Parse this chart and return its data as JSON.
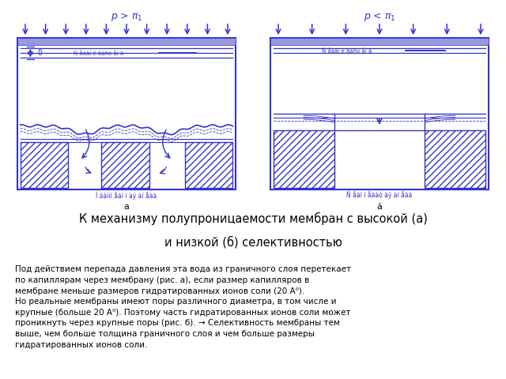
{
  "title_line1": "К механизму полупроницаемости мембран с высокой (а)",
  "title_line2": "и низкой (б) селективностью",
  "pressure_a": "р > $\\pi_1$",
  "pressure_b": "р < $\\pi_1$",
  "blue": "#3333cc",
  "fig_bg": "#ffffff",
  "body_text_lines": [
    "Под действием перепада давления эта вода из граничного слоя перетекает",
    "по капиллярам через мембрану (рис. а), если размер капилляров в",
    "мембране меньше размеров гидратированных ионов соли (20 A⁰).",
    "Но реальные мембраны имеют поры различного диаметра, в том числе и",
    "крупные (больше 20 A⁰). Поэтому часть гидратированных ионов соли может",
    "проникнуть через крупные поры (рис. б). → Селективность мембраны тем",
    "выше, чем больше толщина граничного слоя и чем больше размеры",
    "гидратированных ионов соли."
  ]
}
